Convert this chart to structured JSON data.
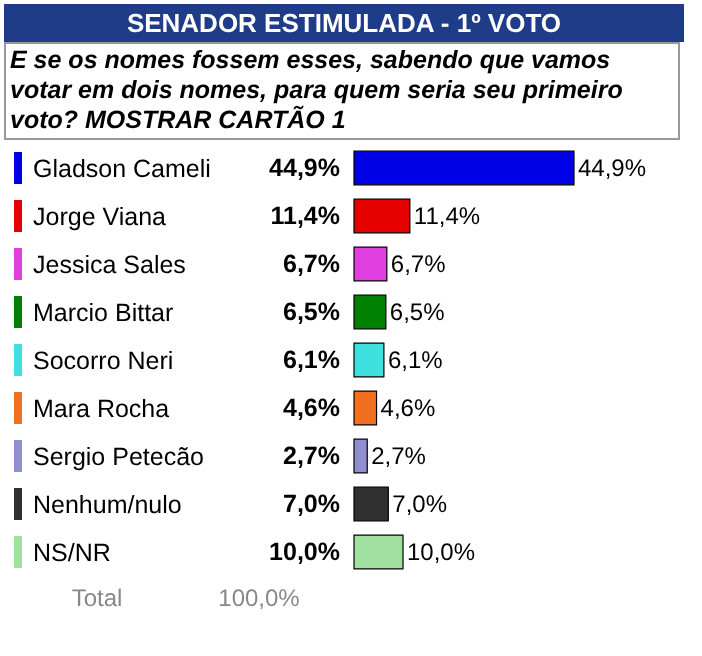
{
  "chart_data": {
    "type": "bar",
    "orientation": "horizontal",
    "title": "SENADOR ESTIMULADA - 1º VOTO",
    "subtitle": "E se os nomes fossem esses, sabendo que vamos votar em dois nomes, para quem seria seu primeiro voto? MOSTRAR CARTÃO 1",
    "categories": [
      "Gladson Cameli",
      "Jorge Viana",
      "Jessica Sales",
      "Marcio Bittar",
      "Socorro Neri",
      "Mara Rocha",
      "Sergio Petecão",
      "Nenhum/nulo",
      "NS/NR"
    ],
    "values": [
      44.9,
      11.4,
      6.7,
      6.5,
      6.1,
      4.6,
      2.7,
      7.0,
      10.0
    ],
    "value_labels": [
      "44,9%",
      "11,4%",
      "6,7%",
      "6,5%",
      "6,1%",
      "4,6%",
      "2,7%",
      "7,0%",
      "10,0%"
    ],
    "colors": [
      "#0000e6",
      "#e60000",
      "#e040e0",
      "#008000",
      "#40e0e0",
      "#f07020",
      "#9090d0",
      "#303030",
      "#a0e0a0"
    ],
    "annotations": [
      "Total",
      "100,0%"
    ]
  }
}
